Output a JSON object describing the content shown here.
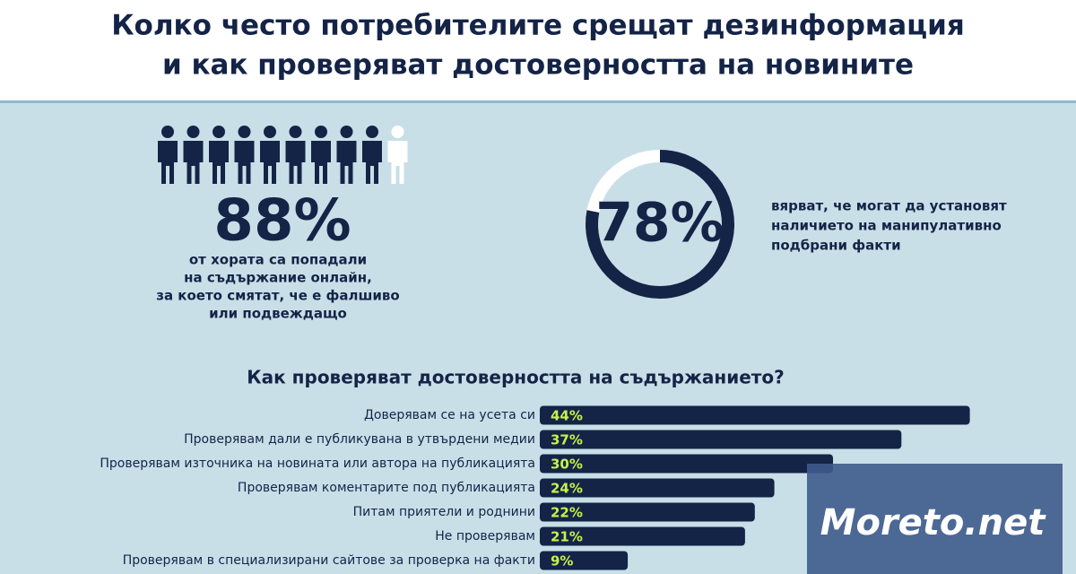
{
  "header": {
    "title_lines": [
      "Колко често потребителите срещат дезинформация",
      "и как проверяват достоверността на новините"
    ]
  },
  "stats": [
    {
      "value": 88,
      "label": "88%",
      "text_lines": [
        "от хората са попадали",
        "на съдържание онлайн,",
        "за което смятат, че е фалшиво",
        "или подвеждащо"
      ]
    },
    {
      "value": 78,
      "label": "78%",
      "text_lines": [
        "вярват, че могат да установят",
        "наличието на манипулативно",
        "подбрани факти"
      ]
    }
  ],
  "chart_data": {
    "type": "bar",
    "orientation": "horizontal",
    "title": "Как проверяват достоверността на съдържанието?",
    "categories": [
      "Доверявам се на усета си",
      "Проверявам дали е публикувана в утвърдени медии",
      "Проверявам източника на новината или автора на публикацията",
      "Проверявам коментарите под публикацията",
      "Питам приятели и роднини",
      "Не проверявам",
      "Проверявам в специализирани сайтове за проверка на факти"
    ],
    "values": [
      44,
      37,
      30,
      24,
      22,
      21,
      9
    ],
    "value_labels": [
      "44%",
      "37%",
      "30%",
      "24%",
      "22%",
      "21%",
      "9%"
    ],
    "color": "#142447",
    "label_color": "#c6f24a"
  },
  "watermark": "Moreto.net"
}
